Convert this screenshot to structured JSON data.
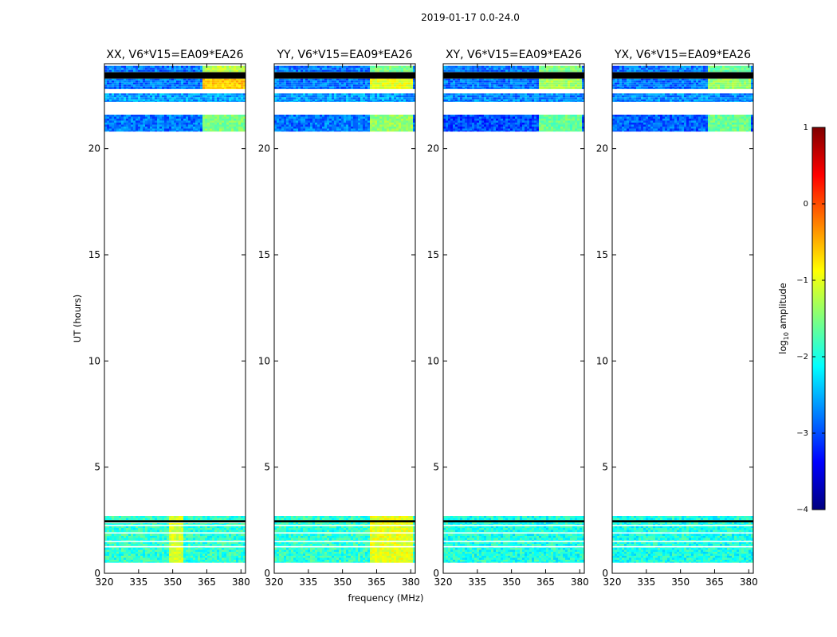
{
  "figure_title": "2019-01-17 0.0-24.0",
  "colors": {
    "colormap": [
      "#00007f",
      "#0000ff",
      "#007fff",
      "#00ffff",
      "#7fff7f",
      "#ffff00",
      "#ff7f00",
      "#ff0000",
      "#7f0000"
    ],
    "flagged": "#000000",
    "frame": "#000000"
  },
  "chart_data": [
    {
      "type": "heatmap",
      "title": "XX, V6*V15=EA09*EA26",
      "xlabel": "",
      "ylabel": "UT (hours)",
      "xlim": [
        320,
        382
      ],
      "ylim": [
        0,
        24
      ],
      "xticks": [
        320,
        335,
        350,
        365,
        380
      ],
      "yticks": [
        0,
        5,
        10,
        15,
        20
      ],
      "data_blocks": [
        {
          "ut": [
            0.5,
            2.7
          ],
          "freq": [
            320,
            382
          ],
          "base_log10": -1.9,
          "flagged_rows": [
            2.25,
            2.4,
            1.9,
            1.5,
            1.25
          ],
          "bright_band": {
            "freq": [
              348,
              354
            ],
            "log10": -1.1
          }
        },
        {
          "ut": [
            20.8,
            21.6
          ],
          "freq": [
            320,
            382
          ],
          "base_log10": -2.8,
          "bright_band": {
            "freq": [
              363,
              382
            ],
            "log10": -1.5
          }
        },
        {
          "ut": [
            22.2,
            22.6
          ],
          "freq": [
            320,
            382
          ],
          "base_log10": -2.6
        },
        {
          "ut": [
            22.8,
            23.3
          ],
          "freq": [
            320,
            382
          ],
          "base_log10": -2.8,
          "bright_band": {
            "freq": [
              363,
              382
            ],
            "log10": -0.6
          }
        },
        {
          "ut": [
            23.6,
            23.9
          ],
          "freq": [
            320,
            382
          ],
          "base_log10": -2.8,
          "bright_band": {
            "freq": [
              363,
              382
            ],
            "log10": -1.2
          }
        }
      ],
      "flagged_ut": [
        [
          23.3,
          23.6
        ],
        [
          2.4,
          2.5
        ]
      ]
    },
    {
      "type": "heatmap",
      "title": "YY, V6*V15=EA09*EA26",
      "xlabel": "frequency (MHz)",
      "ylabel": "",
      "xlim": [
        320,
        382
      ],
      "ylim": [
        0,
        24
      ],
      "xticks": [
        320,
        335,
        350,
        365,
        380
      ],
      "yticks": [
        0,
        5,
        10,
        15,
        20
      ],
      "data_blocks": [
        {
          "ut": [
            0.5,
            2.7
          ],
          "freq": [
            320,
            382
          ],
          "base_log10": -1.9,
          "flagged_rows": [
            2.25,
            1.9,
            1.5,
            1.25
          ],
          "bright_band": {
            "freq": [
              361,
              380
            ],
            "log10": -1.0
          }
        },
        {
          "ut": [
            20.8,
            21.6
          ],
          "freq": [
            320,
            382
          ],
          "base_log10": -2.8,
          "bright_band": {
            "freq": [
              361,
              380
            ],
            "log10": -1.4
          }
        },
        {
          "ut": [
            22.2,
            22.6
          ],
          "freq": [
            320,
            382
          ],
          "base_log10": -2.6
        },
        {
          "ut": [
            22.8,
            23.3
          ],
          "freq": [
            320,
            382
          ],
          "base_log10": -2.8,
          "bright_band": {
            "freq": [
              361,
              380
            ],
            "log10": -1.0
          }
        },
        {
          "ut": [
            23.6,
            23.9
          ],
          "freq": [
            320,
            382
          ],
          "base_log10": -2.8,
          "bright_band": {
            "freq": [
              361,
              380
            ],
            "log10": -1.5
          }
        }
      ],
      "flagged_ut": [
        [
          23.3,
          23.6
        ],
        [
          2.4,
          2.5
        ]
      ]
    },
    {
      "type": "heatmap",
      "title": "XY, V6*V15=EA09*EA26",
      "xlabel": "",
      "ylabel": "",
      "xlim": [
        320,
        382
      ],
      "ylim": [
        0,
        24
      ],
      "xticks": [
        320,
        335,
        350,
        365,
        380
      ],
      "yticks": [
        0,
        5,
        10,
        15,
        20
      ],
      "data_blocks": [
        {
          "ut": [
            0.5,
            2.7
          ],
          "freq": [
            320,
            382
          ],
          "base_log10": -2.0,
          "flagged_rows": [
            2.25,
            1.9,
            1.5,
            1.25
          ]
        },
        {
          "ut": [
            20.8,
            21.6
          ],
          "freq": [
            320,
            382
          ],
          "base_log10": -3.0,
          "bright_band": {
            "freq": [
              361,
              380
            ],
            "log10": -1.6
          }
        },
        {
          "ut": [
            22.2,
            22.6
          ],
          "freq": [
            320,
            382
          ],
          "base_log10": -2.7
        },
        {
          "ut": [
            22.8,
            23.3
          ],
          "freq": [
            320,
            382
          ],
          "base_log10": -2.8,
          "bright_band": {
            "freq": [
              361,
              380
            ],
            "log10": -1.3
          }
        },
        {
          "ut": [
            23.6,
            23.9
          ],
          "freq": [
            320,
            382
          ],
          "base_log10": -2.8,
          "bright_band": {
            "freq": [
              361,
              380
            ],
            "log10": -1.5
          }
        }
      ],
      "flagged_ut": [
        [
          23.3,
          23.6
        ],
        [
          2.4,
          2.5
        ]
      ]
    },
    {
      "type": "heatmap",
      "title": "YX, V6*V15=EA09*EA26",
      "xlabel": "",
      "ylabel": "",
      "xlim": [
        320,
        382
      ],
      "ylim": [
        0,
        24
      ],
      "xticks": [
        320,
        335,
        350,
        365,
        380
      ],
      "yticks": [
        0,
        5,
        10,
        15,
        20
      ],
      "data_blocks": [
        {
          "ut": [
            0.5,
            2.7
          ],
          "freq": [
            320,
            382
          ],
          "base_log10": -2.0,
          "flagged_rows": [
            2.25,
            1.9,
            1.5,
            1.25
          ]
        },
        {
          "ut": [
            20.8,
            21.6
          ],
          "freq": [
            320,
            382
          ],
          "base_log10": -2.9,
          "bright_band": {
            "freq": [
              361,
              380
            ],
            "log10": -1.6
          }
        },
        {
          "ut": [
            22.2,
            22.6
          ],
          "freq": [
            320,
            382
          ],
          "base_log10": -2.7
        },
        {
          "ut": [
            22.8,
            23.3
          ],
          "freq": [
            320,
            382
          ],
          "base_log10": -2.8,
          "bright_band": {
            "freq": [
              361,
              380
            ],
            "log10": -1.4
          }
        },
        {
          "ut": [
            23.6,
            23.9
          ],
          "freq": [
            320,
            382
          ],
          "base_log10": -2.8,
          "bright_band": {
            "freq": [
              361,
              380
            ],
            "log10": -1.6
          }
        }
      ],
      "flagged_ut": [
        [
          23.3,
          23.6
        ],
        [
          2.4,
          2.5
        ]
      ]
    },
    {
      "type": "colorbar",
      "label": "log10 amplitude",
      "label_main": "log",
      "label_sub": "10",
      "label_rest": " amplitude",
      "range": [
        -4,
        1
      ],
      "ticks": [
        1,
        0,
        -1,
        -2,
        -3,
        -4
      ],
      "tick_labels": [
        "1",
        "0",
        "−1",
        "−2",
        "−3",
        "−4"
      ]
    }
  ]
}
